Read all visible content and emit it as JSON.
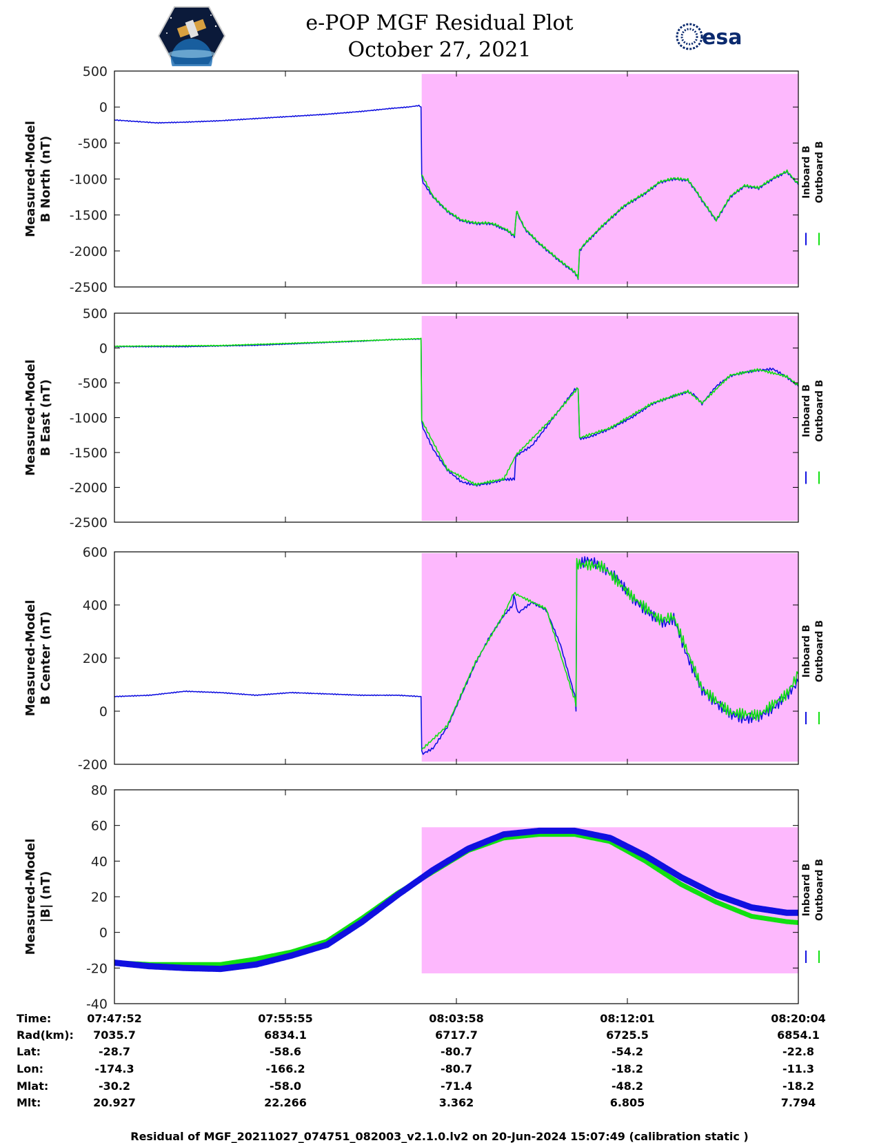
{
  "header": {
    "title_line1": "e-POP MGF Residual Plot",
    "title_line2": "October 27, 2021",
    "logo_left": "cassiope-mission-logo",
    "logo_right_text": "esa"
  },
  "footer": {
    "text": "Residual of MGF_20211027_074751_082003_v2.1.0.lv2 on 20-Jun-2024 15:07:49 (calibration static )"
  },
  "colors": {
    "inboard": "#1010e0",
    "outboard": "#10e010",
    "highlight": "#fdb8fd"
  },
  "orbit_table": {
    "row_labels": [
      "Time:",
      "Rad(km):",
      "Lat:",
      "Lon:",
      "Mlat:",
      "Mlt:"
    ],
    "columns": [
      [
        "07:47:52",
        "7035.7",
        "-28.7",
        "-174.3",
        "-30.2",
        "20.927"
      ],
      [
        "07:55:55",
        "6834.1",
        "-58.6",
        "-166.2",
        "-58.0",
        "22.266"
      ],
      [
        "08:03:58",
        "6717.7",
        "-80.7",
        "-80.7",
        "-71.4",
        "3.362"
      ],
      [
        "08:12:01",
        "6725.5",
        "-54.2",
        "-18.2",
        "-48.2",
        "6.805"
      ],
      [
        "08:20:04",
        "6854.1",
        "-22.8",
        "-11.3",
        "-18.2",
        "7.794"
      ]
    ]
  },
  "chart_data": [
    {
      "type": "line",
      "ylabel_line1": "Measured-Model",
      "ylabel_line2": "B North (nT)",
      "ylim": [
        -2500,
        500
      ],
      "yticks": [
        -2500,
        -2000,
        -1500,
        -1000,
        -500,
        0,
        500
      ],
      "xlim": [
        0,
        1932
      ],
      "xticks": [
        0,
        483,
        966,
        1449,
        1932
      ],
      "xtick_labels": [
        "07:47:52",
        "07:55:55",
        "08:03:58",
        "08:12:01",
        "08:20:04"
      ],
      "legend": [
        "Inboard B",
        "Outboard B"
      ],
      "highlight": {
        "x": [
          868,
          1932
        ],
        "y": [
          -2460,
          460
        ]
      },
      "series": [
        {
          "name": "Inboard B",
          "color": "#1010e0",
          "x": [
            0,
            60,
            120,
            200,
            300,
            400,
            500,
            600,
            700,
            780,
            830,
            860,
            866,
            868,
            872,
            900,
            940,
            980,
            1020,
            1060,
            1080,
            1110,
            1130,
            1136,
            1140,
            1160,
            1200,
            1260,
            1300,
            1310,
            1314,
            1330,
            1380,
            1440,
            1500,
            1540,
            1580,
            1620,
            1640,
            1660,
            1700,
            1740,
            1780,
            1820,
            1860,
            1900,
            1932
          ],
          "y": [
            -180,
            -200,
            -220,
            -210,
            -190,
            -160,
            -130,
            -100,
            -60,
            -20,
            0,
            20,
            0,
            -950,
            -1050,
            -1250,
            -1450,
            -1580,
            -1620,
            -1620,
            -1650,
            -1720,
            -1800,
            -1450,
            -1500,
            -1700,
            -1900,
            -2150,
            -2300,
            -2380,
            -2000,
            -1900,
            -1650,
            -1380,
            -1200,
            -1050,
            -1000,
            -1020,
            -1150,
            -1300,
            -1580,
            -1250,
            -1100,
            -1130,
            -1000,
            -900,
            -1080
          ]
        },
        {
          "name": "Outboard B",
          "color": "#10e010",
          "x": [
            868,
            900,
            940,
            980,
            1020,
            1060,
            1080,
            1110,
            1130,
            1136,
            1140,
            1160,
            1200,
            1260,
            1300,
            1310,
            1314,
            1330,
            1380,
            1440,
            1500,
            1540,
            1580,
            1620,
            1640,
            1660,
            1700,
            1740,
            1780,
            1820,
            1860,
            1900,
            1932
          ],
          "y": [
            -940,
            -1240,
            -1440,
            -1570,
            -1610,
            -1610,
            -1640,
            -1710,
            -1790,
            -1440,
            -1490,
            -1690,
            -1890,
            -2140,
            -2290,
            -2370,
            -1990,
            -1890,
            -1640,
            -1370,
            -1190,
            -1040,
            -990,
            -1010,
            -1140,
            -1290,
            -1570,
            -1240,
            -1090,
            -1120,
            -990,
            -890,
            -1070
          ]
        }
      ]
    },
    {
      "type": "line",
      "ylabel_line1": "Measured-Model",
      "ylabel_line2": "B East (nT)",
      "ylim": [
        -2500,
        500
      ],
      "yticks": [
        -2500,
        -2000,
        -1500,
        -1000,
        -500,
        0,
        500
      ],
      "xlim": [
        0,
        1932
      ],
      "xticks": [
        0,
        483,
        966,
        1449,
        1932
      ],
      "xtick_labels": [
        "07:47:52",
        "07:55:55",
        "08:03:58",
        "08:12:01",
        "08:20:04"
      ],
      "legend": [
        "Inboard B",
        "Outboard B"
      ],
      "highlight": {
        "x": [
          868,
          1932
        ],
        "y": [
          -2480,
          460
        ]
      },
      "series": [
        {
          "name": "Inboard B",
          "color": "#1010e0",
          "x": [
            0,
            100,
            200,
            300,
            400,
            500,
            600,
            700,
            780,
            866,
            868,
            872,
            900,
            940,
            980,
            1020,
            1060,
            1100,
            1130,
            1134,
            1140,
            1180,
            1240,
            1300,
            1310,
            1314,
            1340,
            1400,
            1460,
            1520,
            1580,
            1620,
            1640,
            1660,
            1700,
            1740,
            1780,
            1820,
            1860,
            1900,
            1932
          ],
          "y": [
            20,
            20,
            20,
            30,
            40,
            60,
            80,
            100,
            120,
            130,
            -1050,
            -1150,
            -1450,
            -1750,
            -1920,
            -1970,
            -1940,
            -1890,
            -1880,
            -1550,
            -1530,
            -1400,
            -1000,
            -600,
            -580,
            -1300,
            -1280,
            -1160,
            -1000,
            -800,
            -690,
            -630,
            -680,
            -800,
            -550,
            -400,
            -350,
            -320,
            -300,
            -420,
            -550
          ]
        },
        {
          "name": "Outboard B",
          "color": "#10e010",
          "x": [
            0,
            300,
            600,
            866,
            868,
            940,
            1020,
            1100,
            1134,
            1240,
            1310,
            1314,
            1400,
            1520,
            1620,
            1660,
            1740,
            1820,
            1900,
            1932
          ],
          "y": [
            25,
            35,
            85,
            135,
            -1040,
            -1740,
            -1960,
            -1880,
            -1540,
            -990,
            -570,
            -1290,
            -1150,
            -790,
            -620,
            -790,
            -390,
            -310,
            -410,
            -540
          ]
        }
      ]
    },
    {
      "type": "line",
      "ylabel_line1": "Measured-Model",
      "ylabel_line2": "B Center (nT)",
      "ylim": [
        -200,
        600
      ],
      "yticks": [
        -200,
        0,
        200,
        400,
        600
      ],
      "xlim": [
        0,
        1932
      ],
      "xticks": [
        0,
        483,
        966,
        1449,
        1932
      ],
      "xtick_labels": [
        "07:47:52",
        "07:55:55",
        "08:03:58",
        "08:12:01",
        "08:20:04"
      ],
      "legend": [
        "Inboard B",
        "Outboard B"
      ],
      "highlight": {
        "x": [
          868,
          1932
        ],
        "y": [
          -190,
          595
        ]
      },
      "series": [
        {
          "name": "Inboard B",
          "color": "#1010e0",
          "x": [
            0,
            100,
            200,
            300,
            400,
            500,
            600,
            700,
            800,
            866,
            868,
            872,
            900,
            940,
            980,
            1020,
            1060,
            1100,
            1126,
            1128,
            1140,
            1180,
            1220,
            1260,
            1300,
            1304,
            1306,
            1340,
            1380,
            1420,
            1460,
            1500,
            1540,
            1560,
            1580,
            1620,
            1660,
            1700,
            1740,
            1780,
            1820,
            1860,
            1900,
            1932
          ],
          "y": [
            55,
            60,
            75,
            70,
            60,
            70,
            65,
            60,
            60,
            55,
            -150,
            -160,
            -140,
            -60,
            60,
            180,
            280,
            360,
            400,
            440,
            370,
            410,
            380,
            250,
            60,
            20,
            550,
            570,
            540,
            500,
            430,
            380,
            340,
            330,
            350,
            200,
            80,
            30,
            -10,
            -30,
            -20,
            10,
            60,
            110
          ]
        },
        {
          "name": "Outboard B",
          "color": "#10e010",
          "x": [
            868,
            940,
            1020,
            1100,
            1128,
            1220,
            1304,
            1306,
            1380,
            1460,
            1540,
            1580,
            1660,
            1740,
            1820,
            1900,
            1932
          ],
          "y": [
            -145,
            -55,
            185,
            365,
            445,
            385,
            25,
            555,
            545,
            435,
            345,
            355,
            85,
            -5,
            -15,
            65,
            140
          ]
        }
      ]
    },
    {
      "type": "line",
      "ylabel_line1": "Measured-Model",
      "ylabel_line2": "|B| (nT)",
      "ylim": [
        -40,
        80
      ],
      "yticks": [
        -40,
        -20,
        0,
        20,
        40,
        60,
        80
      ],
      "xlim": [
        0,
        1932
      ],
      "xticks": [
        0,
        483,
        966,
        1449,
        1932
      ],
      "xtick_labels": [
        "07:47:52",
        "07:55:55",
        "08:03:58",
        "08:12:01",
        "08:20:04"
      ],
      "legend": [
        "Inboard B",
        "Outboard B"
      ],
      "highlight": {
        "x": [
          868,
          1932
        ],
        "y": [
          -23,
          59
        ]
      },
      "series": [
        {
          "name": "Outboard B",
          "color": "#10e010",
          "x": [
            0,
            100,
            200,
            300,
            400,
            500,
            600,
            700,
            800,
            900,
            1000,
            1100,
            1200,
            1300,
            1400,
            1500,
            1600,
            1700,
            1800,
            1900,
            1932
          ],
          "y": [
            -17,
            -18,
            -18,
            -18,
            -15,
            -11,
            -5,
            8,
            22,
            34,
            46,
            53,
            55,
            55,
            51,
            40,
            27,
            17,
            9,
            6,
            5.5
          ]
        },
        {
          "name": "Inboard B",
          "color": "#1010e0",
          "x": [
            0,
            100,
            200,
            300,
            400,
            500,
            600,
            700,
            800,
            900,
            1000,
            1100,
            1200,
            1300,
            1400,
            1500,
            1600,
            1700,
            1800,
            1900,
            1932
          ],
          "y": [
            -17,
            -19,
            -20,
            -20.5,
            -18,
            -13,
            -7,
            6,
            21,
            35,
            47,
            55,
            57,
            57,
            53,
            43,
            31,
            21,
            14,
            11,
            11
          ]
        }
      ]
    }
  ]
}
